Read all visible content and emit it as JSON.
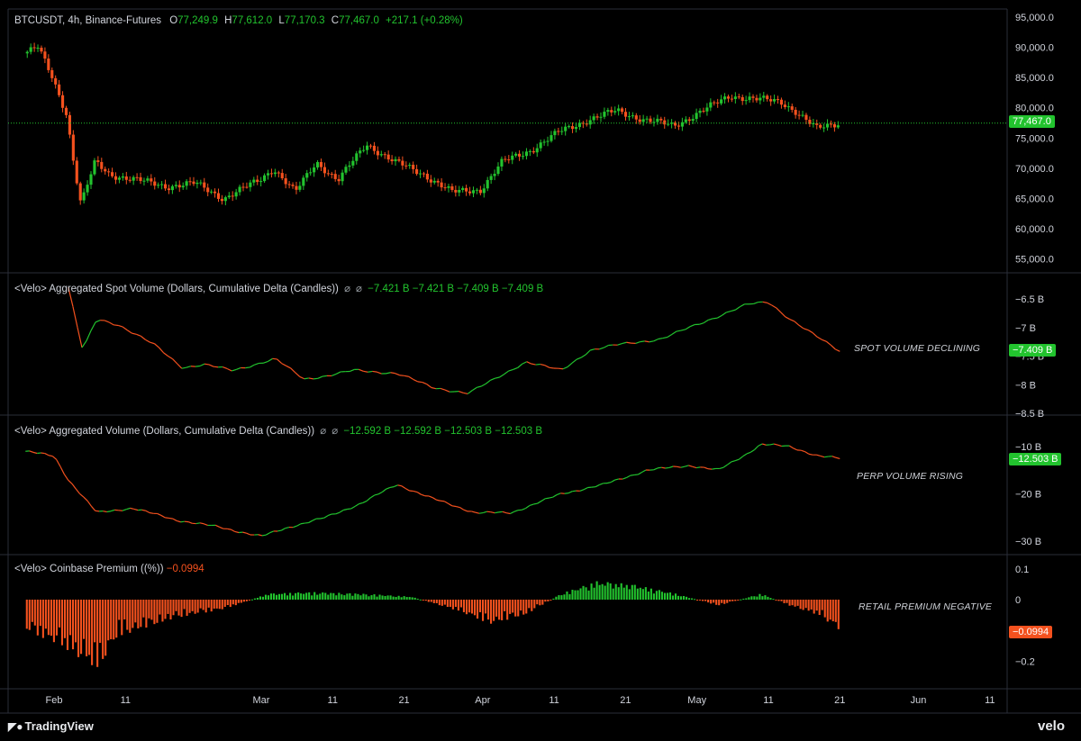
{
  "header": {
    "symbol": "BTCUSDT, 4h, Binance-Futures",
    "o_label": "O",
    "o": "77,249.9",
    "h_label": "H",
    "h": "77,612.0",
    "l_label": "L",
    "l": "77,170.3",
    "c_label": "C",
    "c": "77,467.0",
    "change": "+217.1 (+0.28%)"
  },
  "panes": {
    "spot": {
      "title": "<Velo> Aggregated Spot Volume (Dollars, Cumulative Delta (Candles))",
      "icon1": "⌀",
      "icon2": "⌀",
      "values": [
        "−7.421 B",
        "−7.421 B",
        "−7.409 B",
        "−7.409 B"
      ],
      "note": "SPOT VOLUME DECLINING",
      "last": "−7.409 B"
    },
    "perp": {
      "title": "<Velo> Aggregated Volume (Dollars, Cumulative Delta (Candles))",
      "icon1": "⌀",
      "icon2": "⌀",
      "values": [
        "−12.592 B",
        "−12.592 B",
        "−12.503 B",
        "−12.503 B"
      ],
      "note": "PERP VOLUME RISING",
      "last": "−12.503 B"
    },
    "premium": {
      "title": "<Velo> Coinbase Premium ((%))",
      "value": "−0.0994",
      "note": "RETAIL PREMIUM NEGATIVE",
      "last": "−0.0994"
    }
  },
  "price_badge": "77,467.0",
  "brand_left": "TradingView",
  "brand_right": "velo",
  "colors": {
    "up": "#22c32e",
    "down": "#f4511e",
    "bg": "#000000",
    "grid": "#2a2e39"
  },
  "chart_data": [
    {
      "type": "line",
      "title": "BTCUSDT, 4h, Binance-Futures",
      "note": "candlestick price, approximated by closing path",
      "x_ticks": [
        "Feb",
        "11",
        "Mar",
        "11",
        "21",
        "Apr",
        "11",
        "21",
        "May",
        "11",
        "21",
        "Jun",
        "11"
      ],
      "y_ticks": [
        "95,000.0",
        "90,000.0",
        "85,000.0",
        "80,000.0",
        "75,000.0",
        "70,000.0",
        "65,000.0",
        "60,000.0",
        "55,000.0"
      ],
      "ylim": [
        52000,
        95000
      ],
      "current": 77467,
      "x": [
        "Jan 28",
        "Jan 30",
        "Feb 1",
        "Feb 3",
        "Feb 4",
        "Feb 5",
        "Feb 7",
        "Feb 9",
        "Feb 13",
        "Feb 17",
        "Feb 21",
        "Feb 25",
        "Mar 1",
        "Mar 3",
        "Mar 6",
        "Mar 9",
        "Mar 12",
        "Mar 16",
        "Mar 20",
        "Mar 24",
        "Mar 28",
        "Apr 1",
        "Apr 4",
        "Apr 8",
        "Apr 12",
        "Apr 16",
        "Apr 20",
        "Apr 24",
        "Apr 28",
        "May 2",
        "May 6",
        "May 9",
        "May 13",
        "May 15",
        "May 18",
        "May 21"
      ],
      "values": [
        89000,
        90000,
        85000,
        79000,
        71000,
        64000,
        71000,
        69000,
        68000,
        67000,
        67500,
        65000,
        68000,
        70000,
        66000,
        71000,
        68000,
        74000,
        71000,
        69000,
        66000,
        66500,
        71000,
        73000,
        76000,
        78000,
        79500,
        78000,
        77000,
        79500,
        82000,
        81500,
        81000,
        79500,
        76500,
        77467
      ]
    },
    {
      "type": "line",
      "title": "<Velo> Aggregated Spot Volume (Dollars, Cumulative Delta (Candles))",
      "unit": "B",
      "y_ticks": [
        "−6.5 B",
        "−7 B",
        "−7.5 B",
        "−8 B",
        "−8.5 B"
      ],
      "ylim": [
        -8.6,
        -6.3
      ],
      "x": [
        "Feb 3",
        "Feb 5",
        "Feb 7",
        "Feb 10",
        "Feb 15",
        "Feb 19",
        "Feb 22",
        "Feb 26",
        "Mar 3",
        "Mar 7",
        "Mar 10",
        "Mar 14",
        "Mar 20",
        "Mar 25",
        "Mar 30",
        "Apr 2",
        "Apr 7",
        "Apr 12",
        "Apr 16",
        "Apr 20",
        "Apr 26",
        "May 1",
        "May 5",
        "May 8",
        "May 11",
        "May 14",
        "May 17",
        "May 21"
      ],
      "values": [
        -6.3,
        -7.4,
        -6.85,
        -6.95,
        -7.3,
        -7.7,
        -7.65,
        -7.75,
        -7.55,
        -7.9,
        -7.85,
        -7.75,
        -7.8,
        -8.05,
        -8.15,
        -7.95,
        -7.6,
        -7.75,
        -7.4,
        -7.3,
        -7.2,
        -6.95,
        -6.75,
        -6.6,
        -6.55,
        -6.85,
        -7.1,
        -7.409
      ]
    },
    {
      "type": "line",
      "title": "<Velo> Aggregated Volume (Dollars, Cumulative Delta (Candles))",
      "unit": "B",
      "y_ticks": [
        "−10 B",
        "−20 B",
        "−30 B"
      ],
      "ylim": [
        -32,
        -8
      ],
      "x": [
        "Jan 28",
        "Feb 1",
        "Feb 3",
        "Feb 7",
        "Feb 12",
        "Feb 18",
        "Feb 24",
        "Mar 1",
        "Mar 5",
        "Mar 10",
        "Mar 15",
        "Mar 20",
        "Mar 25",
        "Mar 31",
        "Apr 5",
        "Apr 12",
        "Apr 18",
        "Apr 24",
        "Apr 30",
        "May 4",
        "May 8",
        "May 10",
        "May 14",
        "May 18",
        "May 21"
      ],
      "values": [
        -11,
        -12,
        -17,
        -24,
        -23,
        -25.5,
        -27,
        -29,
        -27,
        -25,
        -22,
        -18,
        -21,
        -24,
        -24,
        -20,
        -18,
        -15,
        -14,
        -15,
        -11.5,
        -9.5,
        -10,
        -12,
        -12.503
      ]
    },
    {
      "type": "bar",
      "title": "<Velo> Coinbase Premium ((%))",
      "unit": "%",
      "y_ticks": [
        "0.1",
        "0",
        "−0.2"
      ],
      "ylim": [
        -0.25,
        0.1
      ],
      "x": [
        "Jan 28",
        "Feb 1",
        "Feb 4",
        "Feb 7",
        "Feb 10",
        "Feb 18",
        "Feb 25",
        "Mar 2",
        "Mar 8",
        "Mar 15",
        "Mar 22",
        "Mar 29",
        "Apr 2",
        "Apr 7",
        "Apr 12",
        "Apr 17",
        "Apr 22",
        "Apr 28",
        "May 4",
        "May 10",
        "May 14",
        "May 18",
        "May 21"
      ],
      "values": [
        -0.1,
        -0.14,
        -0.18,
        -0.23,
        -0.12,
        -0.06,
        -0.03,
        0.02,
        0.025,
        0.02,
        0.01,
        -0.04,
        -0.08,
        -0.05,
        0.02,
        0.06,
        0.05,
        0.02,
        -0.02,
        0.02,
        -0.02,
        -0.05,
        -0.0994
      ]
    }
  ]
}
